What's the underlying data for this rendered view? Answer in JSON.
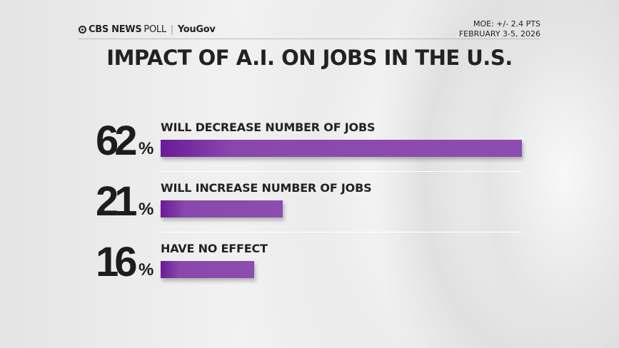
{
  "header": {
    "brand": "CBS NEWS",
    "poll": "POLL",
    "partner": "YouGov",
    "moe": "MOE: +/- 2.4 PTS",
    "dates": "FEBRUARY 3-5, 2026"
  },
  "chart_data": {
    "type": "bar",
    "orientation": "horizontal",
    "title": "IMPACT OF A.I. ON JOBS IN THE U.S.",
    "categories": [
      "WILL DECREASE NUMBER OF JOBS",
      "WILL INCREASE NUMBER OF JOBS",
      "HAVE NO EFFECT"
    ],
    "values": [
      62,
      21,
      16
    ],
    "value_labels": [
      "62",
      "21",
      "16"
    ],
    "unit": "%",
    "bar_color": "#8d4caf",
    "grid": false
  }
}
